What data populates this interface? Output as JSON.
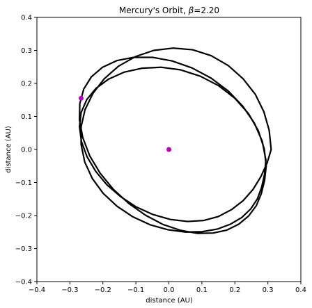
{
  "chart_data": {
    "type": "line",
    "title_main": "Mercury's Orbit, ",
    "title_symbol": "β",
    "title_value": "=2.20",
    "xlabel": "distance (AU)",
    "ylabel": "distance (AU)",
    "xlim": [
      -0.4,
      0.4
    ],
    "ylim": [
      -0.4,
      0.4
    ],
    "xticks": [
      -0.4,
      -0.3,
      -0.2,
      -0.1,
      0.0,
      0.1,
      0.2,
      0.3,
      0.4
    ],
    "yticks": [
      -0.4,
      -0.3,
      -0.2,
      -0.1,
      0.0,
      0.1,
      0.2,
      0.3,
      0.4
    ],
    "xtick_labels": [
      "−0.4",
      "−0.3",
      "−0.2",
      "−0.1",
      "0.0",
      "0.1",
      "0.2",
      "0.3",
      "0.4"
    ],
    "ytick_labels": [
      "−0.4",
      "−0.3",
      "−0.2",
      "−0.1",
      "0.0",
      "0.1",
      "0.2",
      "0.3",
      "0.4"
    ],
    "grid": false,
    "series": [
      {
        "kind": "orbit",
        "color": "#000000",
        "x": [
          0.31,
          0.304,
          0.288,
          0.262,
          0.225,
          0.18,
          0.128,
          0.072,
          0.013,
          -0.046,
          -0.102,
          -0.153,
          -0.196,
          -0.23,
          -0.254,
          -0.266,
          -0.266,
          -0.255,
          -0.232,
          -0.199,
          -0.157,
          -0.109,
          -0.057,
          -0.003,
          0.05,
          0.101,
          0.147,
          0.187,
          0.221,
          0.248,
          0.268,
          0.281,
          0.29,
          0.294,
          0.283,
          0.259,
          0.224,
          0.18,
          0.128,
          0.07,
          0.01,
          -0.05,
          -0.107,
          -0.158,
          -0.201,
          -0.235,
          -0.258,
          -0.27,
          -0.271,
          -0.261,
          -0.24,
          -0.209,
          -0.169,
          -0.122,
          -0.071,
          -0.018,
          0.036,
          0.087,
          0.134,
          0.176,
          0.212,
          0.242,
          0.265,
          0.28,
          0.29,
          0.295,
          0.289,
          0.271,
          0.241,
          0.2,
          0.151,
          0.095,
          0.036,
          -0.024,
          -0.082,
          -0.136,
          -0.183,
          -0.221,
          -0.249,
          -0.266,
          -0.271,
          -0.265,
          -0.248,
          -0.222,
          -0.188,
          -0.146,
          -0.099,
          -0.048,
          0.005,
          0.057,
          0.105,
          0.15,
          0.19,
          0.225,
          0.255,
          0.279,
          0.298,
          0.31
        ],
        "y": [
          0.0,
          0.058,
          0.114,
          0.167,
          0.214,
          0.254,
          0.284,
          0.302,
          0.307,
          0.3,
          0.281,
          0.252,
          0.214,
          0.17,
          0.121,
          0.069,
          0.015,
          -0.038,
          -0.088,
          -0.133,
          -0.172,
          -0.204,
          -0.228,
          -0.243,
          -0.25,
          -0.249,
          -0.241,
          -0.226,
          -0.206,
          -0.18,
          -0.15,
          -0.115,
          -0.075,
          -0.032,
          0.025,
          0.08,
          0.131,
          0.177,
          0.216,
          0.247,
          0.268,
          0.279,
          0.279,
          0.269,
          0.249,
          0.22,
          0.183,
          0.139,
          0.089,
          0.036,
          -0.019,
          -0.071,
          -0.12,
          -0.163,
          -0.199,
          -0.227,
          -0.245,
          -0.254,
          -0.253,
          -0.244,
          -0.226,
          -0.201,
          -0.17,
          -0.134,
          -0.094,
          -0.05,
          0.002,
          0.057,
          0.109,
          0.155,
          0.193,
          0.222,
          0.241,
          0.249,
          0.246,
          0.234,
          0.213,
          0.185,
          0.151,
          0.112,
          0.069,
          0.024,
          -0.022,
          -0.066,
          -0.107,
          -0.143,
          -0.174,
          -0.197,
          -0.212,
          -0.218,
          -0.215,
          -0.203,
          -0.182,
          -0.155,
          -0.121,
          -0.082,
          -0.04,
          0.0
        ]
      }
    ],
    "markers": [
      {
        "name": "Sun",
        "x": 0.0,
        "y": 0.0,
        "color": "#bf00bf"
      },
      {
        "name": "Mercury",
        "x": -0.266,
        "y": 0.155,
        "color": "#bf00bf"
      }
    ]
  }
}
